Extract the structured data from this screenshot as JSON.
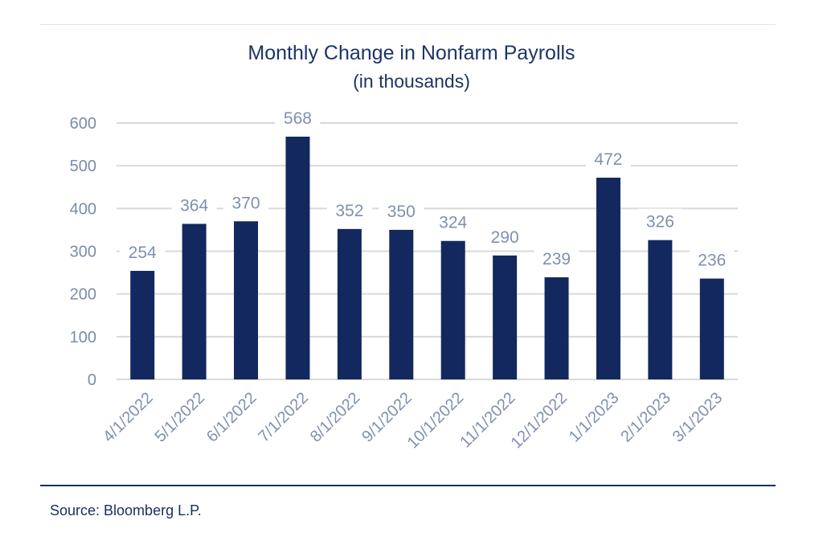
{
  "chart_data": {
    "type": "bar",
    "title": "Monthly Change in Nonfarm Payrolls",
    "subtitle": "(in thousands)",
    "categories": [
      "4/1/2022",
      "5/1/2022",
      "6/1/2022",
      "7/1/2022",
      "8/1/2022",
      "9/1/2022",
      "10/1/2022",
      "11/1/2022",
      "12/1/2022",
      "1/1/2023",
      "2/1/2023",
      "3/1/2023"
    ],
    "values": [
      254,
      364,
      370,
      568,
      352,
      350,
      324,
      290,
      239,
      472,
      326,
      236
    ],
    "ylim": [
      0,
      600
    ],
    "yticks": [
      0,
      100,
      200,
      300,
      400,
      500,
      600
    ],
    "grid": true,
    "data_labels": true,
    "bar_color": "#13285e",
    "grid_color": "#d9d9d9"
  },
  "source": "Source: Bloomberg L.P."
}
